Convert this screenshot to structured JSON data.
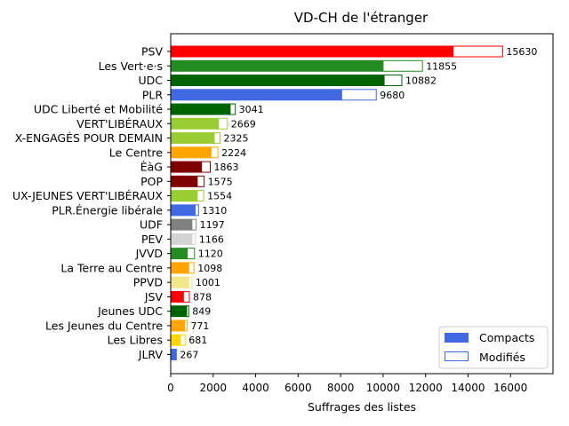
{
  "chart_data": {
    "type": "bar",
    "orientation": "horizontal",
    "stacked": true,
    "title": "VD-CH de l'étranger",
    "xlabel": "Suffrages des listes",
    "ylabel": "",
    "xlim": [
      0,
      18000
    ],
    "xticks": [
      0,
      2000,
      4000,
      6000,
      8000,
      10000,
      12000,
      14000,
      16000
    ],
    "grid": false,
    "legend_position": "lower-right",
    "legend": [
      {
        "name": "Compacts",
        "style": "filled",
        "color": "#4169e1"
      },
      {
        "name": "Modifiés",
        "style": "outline",
        "color": "#4169e1"
      }
    ],
    "categories": [
      {
        "label": "PSV",
        "compact": 13300,
        "modified": 2330,
        "total": 15630,
        "color": "#ff0000"
      },
      {
        "label": "Les Vert·e·s",
        "compact": 10000,
        "modified": 1855,
        "total": 11855,
        "color": "#228b22"
      },
      {
        "label": "UDC",
        "compact": 10050,
        "modified": 832,
        "total": 10882,
        "color": "#006400"
      },
      {
        "label": "PLR",
        "compact": 8050,
        "modified": 1630,
        "total": 9680,
        "color": "#4169e1"
      },
      {
        "label": "UDC Liberté et Mobilité",
        "compact": 2800,
        "modified": 241,
        "total": 3041,
        "color": "#006400"
      },
      {
        "label": "VERT'LIBÉRAUX",
        "compact": 2250,
        "modified": 419,
        "total": 2669,
        "color": "#9acd32"
      },
      {
        "label": "X-ENGAGÉS POUR DEMAIN",
        "compact": 2050,
        "modified": 275,
        "total": 2325,
        "color": "#9acd32"
      },
      {
        "label": "Le Centre",
        "compact": 1900,
        "modified": 324,
        "total": 2224,
        "color": "#ffa500"
      },
      {
        "label": "ÈàG",
        "compact": 1450,
        "modified": 413,
        "total": 1863,
        "color": "#800000"
      },
      {
        "label": "POP",
        "compact": 1250,
        "modified": 325,
        "total": 1575,
        "color": "#800000"
      },
      {
        "label": "UX-JEUNES VERT'LIBÉRAUX",
        "compact": 1250,
        "modified": 304,
        "total": 1554,
        "color": "#9acd32"
      },
      {
        "label": "PLR.Énergie libérale",
        "compact": 1150,
        "modified": 160,
        "total": 1310,
        "color": "#4169e1"
      },
      {
        "label": "UDF",
        "compact": 1000,
        "modified": 197,
        "total": 1197,
        "color": "#808080"
      },
      {
        "label": "PEV",
        "compact": 1000,
        "modified": 166,
        "total": 1166,
        "color": "#d3d3d3"
      },
      {
        "label": "JVVD",
        "compact": 780,
        "modified": 340,
        "total": 1120,
        "color": "#228b22"
      },
      {
        "label": "La Terre au Centre",
        "compact": 850,
        "modified": 248,
        "total": 1098,
        "color": "#ffa500"
      },
      {
        "label": "PPVD",
        "compact": 850,
        "modified": 151,
        "total": 1001,
        "color": "#f0e68c"
      },
      {
        "label": "JSV",
        "compact": 600,
        "modified": 278,
        "total": 878,
        "color": "#ff0000"
      },
      {
        "label": "Jeunes UDC",
        "compact": 750,
        "modified": 99,
        "total": 849,
        "color": "#006400"
      },
      {
        "label": "Les Jeunes du Centre",
        "compact": 650,
        "modified": 121,
        "total": 771,
        "color": "#ffa500"
      },
      {
        "label": "Les Libres",
        "compact": 450,
        "modified": 231,
        "total": 681,
        "color": "#ffd700"
      },
      {
        "label": "JLRV",
        "compact": 250,
        "modified": 17,
        "total": 267,
        "color": "#4169e1"
      }
    ]
  }
}
